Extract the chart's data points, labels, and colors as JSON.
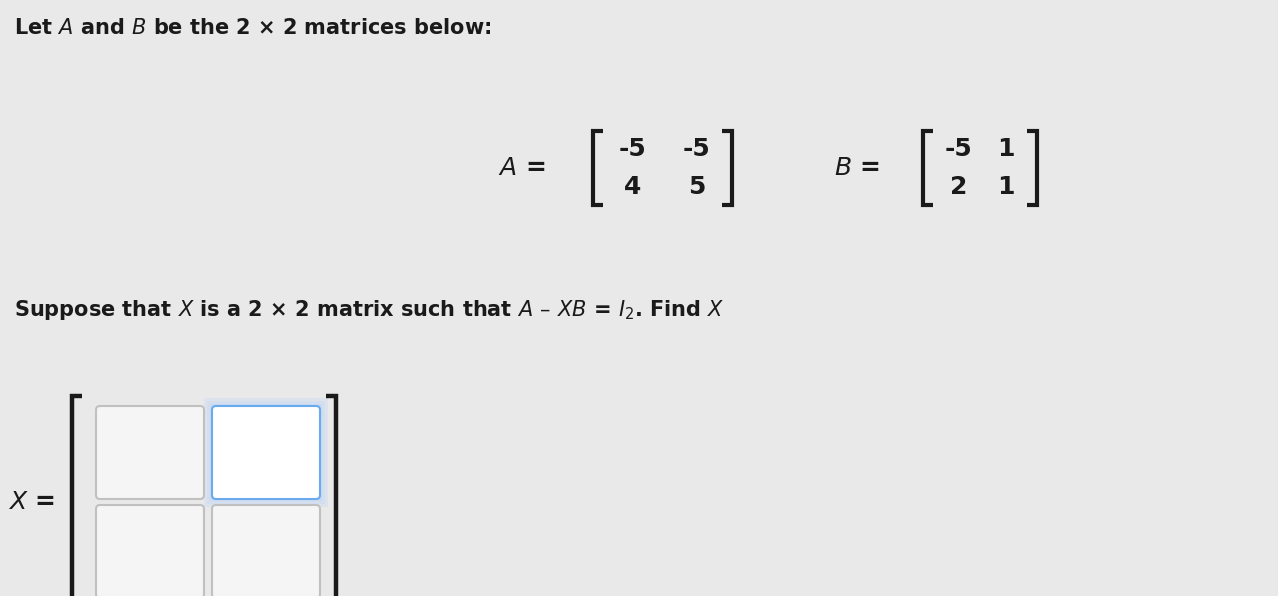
{
  "bg_color": "#e9e9e9",
  "title_text": "Let $\\mathit{A}$ and $\\mathit{B}$ be the 2 × 2 matrices below:",
  "A_label": "$\\mathit{A}$ =",
  "B_label": "$\\mathit{B}$ =",
  "A_matrix": [
    [
      "-5",
      "-5"
    ],
    [
      "4",
      "5"
    ]
  ],
  "B_matrix": [
    [
      "-5",
      "1"
    ],
    [
      "2",
      "1"
    ]
  ],
  "equation_text": "Suppose that $\\mathit{X}$ is a 2 × 2 matrix such that $\\mathit{A}$ – $\\mathit{X}\\mathit{B}$ = $\\mathit{I}_2$. Find $\\mathit{X}$",
  "x_label": "$\\mathit{X}$ =",
  "box1_color": "#f5f5f5",
  "box1_edge": "#c0c0c0",
  "box2_color": "#ffffff",
  "box2_edge": "#6aaaee",
  "box2_glow": "#aaccff",
  "bracket_color": "#1a1a1a",
  "text_color": "#1a1a1a",
  "title_fontsize": 15,
  "matrix_fontsize": 18,
  "eq_fontsize": 15,
  "xlabel_fontsize": 18
}
